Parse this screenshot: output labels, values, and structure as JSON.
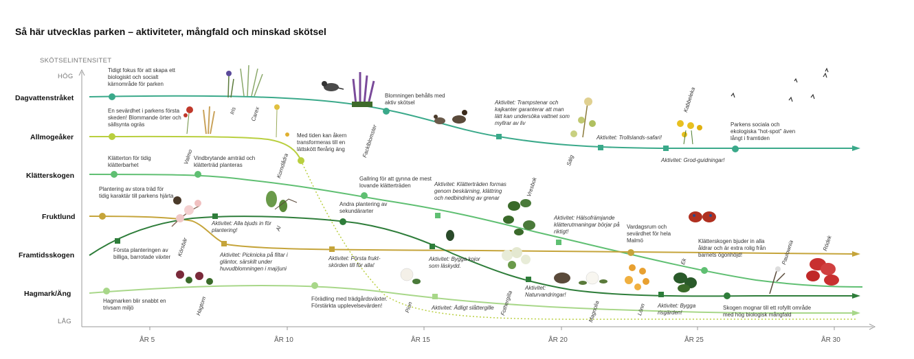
{
  "title": "Så här utvecklas parken – aktiviteter, mångfald och minskad skötsel",
  "y_axis": {
    "label": "SKÖTSELINTENSITET",
    "high": "HÖG",
    "low": "LÅG"
  },
  "x_axis": {
    "ticks": [
      "ÅR 5",
      "ÅR 10",
      "ÅR 15",
      "ÅR 20",
      "ÅR 25",
      "ÅR 30"
    ]
  },
  "rows": {
    "dagvatten": "Dagvattenstråket",
    "allmoge": "Allmogeåker",
    "klatter": "Klätterskogen",
    "frukt": "Fruktlund",
    "framtid": "Framtidsskogen",
    "hagmark": "Hagmark/Äng"
  },
  "colors": {
    "dagvatten": "#3aa98a",
    "allmoge": "#b9cf3f",
    "klatter": "#5fbf72",
    "frukt": "#c5a43a",
    "framtid": "#2e7d3a",
    "hagmark": "#a8d789"
  },
  "annotations": {
    "a1": "Tidigt fokus för att skapa ett biologiskt och socialt kärnområde för parken",
    "a2": "En sevärdhet i parkens första skeden! Blommande örter och sällsynta ogräs",
    "a3": "Klätterton för tidig klätterbarhet",
    "a4": "Vindbrytande amträd och klätterträd planteras",
    "a5": "Plantering av stora träd för tidig karaktär till parkens hjärta",
    "a6": "Aktivitet: Alla bjuds in för plantering!",
    "a7": "Första planteringen av billiga, barrotade växter",
    "a8": "Aktivitet: Picknicka på filtar i gläntor, särskilt under huvudblomningen i maj/juni",
    "a9": "Hagmarken blir snabbt en trivsam miljö",
    "a10": "Med tiden kan åkern transformeras till en lättskött flerårig äng",
    "a11": "Blomningen behålls med aktiv skötsel",
    "a12": "Gallring för att gynna de mest lovande klätterträden",
    "a13": "Andra plantering av sekundärarter",
    "a14": "Aktivitet: Första frukt-skörden till för alla!",
    "a15": "Förädling med trädgårdsväxter. Förstärkta upplevelsevärden!",
    "a16": "Aktivitet: Trampstenar och kajkanter garanterar att man lätt kan undersöka vattnet som myllrar av liv",
    "a17": "Aktivitet: Klätterträden formas genom beskärning, klättring och nedbindning av grenar",
    "a18": "Aktivitet: Bygga kojor som läskydd.",
    "a19": "Aktivitet: Ädligt slåttergille",
    "a20": "Aktivitet: Trollslands-safari!",
    "a21": "Aktivitet: Grod-guidningar!",
    "a22": "Parkens sociala och ekologiska \"hot-spot\" även långt i framtiden",
    "a23": "Aktivitet: Hälsofrämjande klätterutmaningar börjar på riktigt!",
    "a24": "Vardagsrum och sevärdhet för hela Malmö",
    "a25": "Klätterskogen bjuder in alla åldrar och är extra rolig från barnets ögonhöjd!",
    "a26": "Aktivitet: Naturvandringar!",
    "a27": "Aktivitet: Bygga risgärden!",
    "a28": "Skogen mognar till ett rofyllt område med hög biologisk mångfald"
  },
  "plants": {
    "valmo": "Valmo",
    "iris": "Iris",
    "carex": "Carex",
    "korndadra": "Korndådra",
    "facklor": "Facklblomster",
    "korsbar": "Körsbär",
    "al": "Al",
    "hagtorn": "Hagtorn",
    "vresbok": "Vresbok",
    "salg": "Sälg",
    "kabbeleka": "Kabbeleka",
    "pion": "Pion",
    "fothergilla": "Fothergilla",
    "magnolia": "Magnolia",
    "lonn": "Lönn",
    "ek": "Ek",
    "paulownia": "Paulownia",
    "rodek": "Rödek"
  }
}
